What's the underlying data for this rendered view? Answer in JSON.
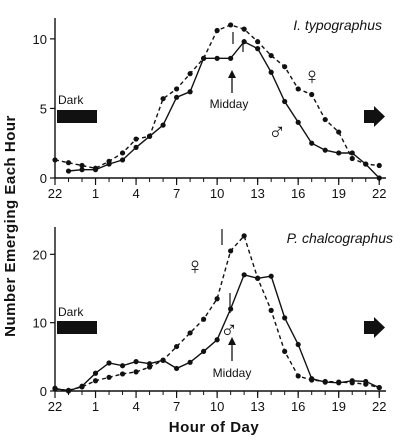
{
  "chart_data": [
    {
      "type": "line",
      "title": "I. typographus",
      "xlabel": "Hour of Day",
      "ylabel": "Number Emerging Each Hour",
      "xlim": [
        22,
        46.5
      ],
      "ylim": [
        0,
        11.5
      ],
      "x_tick_values": [
        22,
        25,
        28,
        31,
        34,
        37,
        40,
        43,
        46
      ],
      "x_tick_labels": [
        "22",
        "1",
        "4",
        "7",
        "10",
        "13",
        "16",
        "19",
        "22"
      ],
      "y_ticks": [
        0,
        5,
        10
      ],
      "series": [
        {
          "name": "♀",
          "style": "dashed",
          "x": [
            22,
            23,
            24,
            25,
            26,
            27,
            28,
            29,
            30,
            31,
            32,
            33,
            34,
            35,
            36,
            37,
            38,
            39,
            40,
            41,
            42,
            43,
            44,
            45,
            46
          ],
          "y": [
            1.3,
            1.1,
            0.9,
            0.7,
            1.2,
            1.8,
            2.8,
            3.0,
            5.7,
            6.4,
            7.5,
            8.6,
            10.6,
            11.0,
            10.7,
            9.8,
            8.8,
            8.0,
            6.4,
            6.0,
            4.2,
            3.3,
            1.4,
            1.0,
            0.9
          ]
        },
        {
          "name": "♂",
          "style": "solid",
          "x": [
            23,
            24,
            25,
            26,
            27,
            28,
            29,
            30,
            31,
            32,
            33,
            34,
            35,
            36,
            37,
            38,
            39,
            40,
            41,
            42,
            43,
            44,
            45,
            46
          ],
          "y": [
            0.5,
            0.6,
            0.6,
            1.0,
            1.3,
            2.2,
            3.0,
            3.8,
            5.8,
            6.2,
            8.6,
            8.6,
            8.6,
            9.8,
            9.3,
            7.6,
            5.5,
            4.0,
            2.5,
            2.0,
            1.8,
            1.8,
            1.0,
            0.0
          ]
        }
      ],
      "annotations": {
        "dark_label": "Dark",
        "midday_label": "Midday",
        "female_symbol": "♀",
        "male_symbol": "♂"
      }
    },
    {
      "type": "line",
      "title": "P. chalcographus",
      "xlabel": "Hour of Day",
      "ylabel": "Number Emerging Each Hour",
      "xlim": [
        22,
        46.5
      ],
      "ylim": [
        0,
        24
      ],
      "x_tick_values": [
        22,
        25,
        28,
        31,
        34,
        37,
        40,
        43,
        46
      ],
      "x_tick_labels": [
        "22",
        "1",
        "4",
        "7",
        "10",
        "13",
        "16",
        "19",
        "22"
      ],
      "y_ticks": [
        0,
        10,
        20
      ],
      "series": [
        {
          "name": "♀",
          "style": "dashed",
          "x": [
            22,
            23,
            24,
            25,
            26,
            27,
            28,
            29,
            30,
            31,
            32,
            33,
            34,
            35,
            36,
            37,
            38,
            39,
            40,
            41,
            42,
            43,
            44,
            45,
            46
          ],
          "y": [
            0.3,
            0.1,
            0.6,
            1.5,
            2.0,
            2.5,
            2.8,
            3.5,
            4.5,
            6.5,
            8.5,
            10.5,
            13.5,
            20.5,
            22.7,
            16.5,
            11.8,
            5.8,
            2.2,
            1.6,
            1.4,
            1.3,
            1.2,
            1.0,
            0.5
          ]
        },
        {
          "name": "♂",
          "style": "solid",
          "x": [
            22,
            23,
            24,
            25,
            26,
            27,
            28,
            29,
            30,
            31,
            32,
            33,
            34,
            35,
            36,
            37,
            38,
            39,
            40,
            41,
            42,
            43,
            44,
            45,
            46
          ],
          "y": [
            0.4,
            0.0,
            0.7,
            2.6,
            4.1,
            3.7,
            4.3,
            4.0,
            4.5,
            3.3,
            4.2,
            5.8,
            7.5,
            12.0,
            17.0,
            16.5,
            16.8,
            10.7,
            6.8,
            1.8,
            1.3,
            1.2,
            1.5,
            1.4,
            0.5
          ]
        }
      ],
      "annotations": {
        "dark_label": "Dark",
        "midday_label": "Midday",
        "female_symbol": "♀",
        "male_symbol": "♂"
      }
    }
  ],
  "labels": {
    "y_axis_title": "Number Emerging Each Hour",
    "x_axis_title": "Hour of Day"
  }
}
